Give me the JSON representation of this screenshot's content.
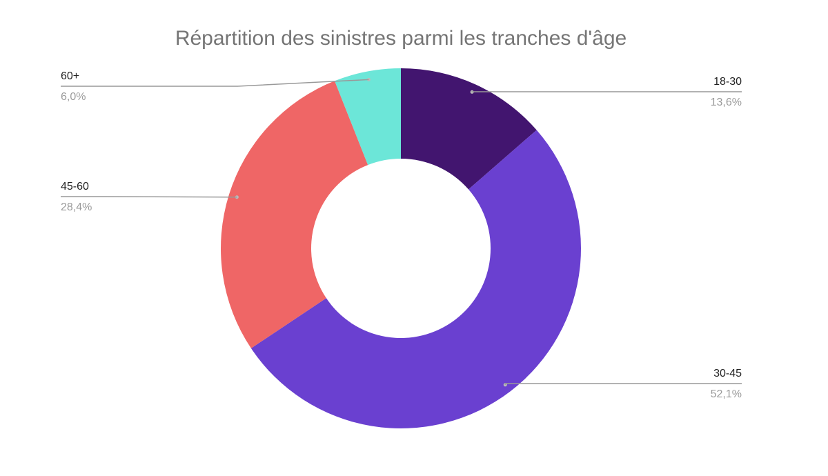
{
  "chart_data": {
    "type": "pie",
    "title": "Répartition des sinistres parmi les tranches d'âge",
    "categories": [
      "18-30",
      "30-45",
      "45-60",
      "60+"
    ],
    "values": [
      13.6,
      52.1,
      28.4,
      6.0
    ],
    "value_labels": [
      "13,6%",
      "52,1%",
      "28,4%",
      "6,0%"
    ],
    "colors": [
      "#42156f",
      "#6a40d0",
      "#ef6666",
      "#6ce6d8"
    ]
  }
}
